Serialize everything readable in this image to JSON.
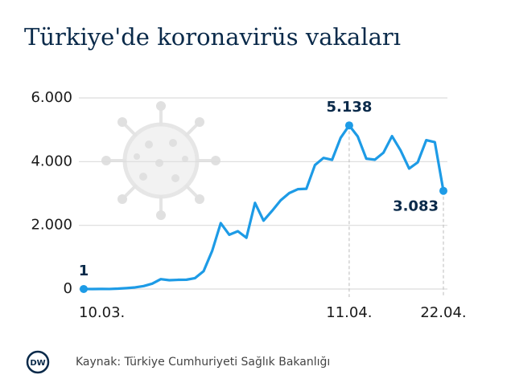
{
  "chart_data": {
    "type": "line",
    "title": "Türkiye'de koronavirüs vakaları",
    "source": "Kaynak: Türkiye Cumhuriyeti Sağlık Bakanlığı",
    "logo": "DW",
    "categories": [
      "10.03.",
      null,
      null,
      null,
      null,
      null,
      null,
      null,
      null,
      null,
      null,
      null,
      null,
      null,
      null,
      null,
      null,
      null,
      null,
      null,
      null,
      null,
      null,
      null,
      null,
      null,
      null,
      null,
      null,
      null,
      null,
      "11.04.",
      null,
      null,
      null,
      null,
      null,
      null,
      null,
      null,
      null,
      null,
      "22.04."
    ],
    "values": [
      1,
      0,
      4,
      1,
      12,
      29,
      51,
      93,
      168,
      311,
      277,
      289,
      293,
      343,
      561,
      1196,
      2069,
      1704,
      1815,
      1610,
      2704,
      2148,
      2456,
      2786,
      3013,
      3135,
      3148,
      3892,
      4117,
      4056,
      4747,
      5138,
      4789,
      4093,
      4062,
      4281,
      4801,
      4353,
      3783,
      3977,
      4674,
      4611,
      3083
    ],
    "value_labels": [
      "1",
      null,
      null,
      null,
      null,
      null,
      null,
      null,
      null,
      null,
      null,
      null,
      null,
      null,
      null,
      null,
      null,
      null,
      null,
      null,
      null,
      null,
      null,
      null,
      null,
      null,
      null,
      null,
      null,
      null,
      null,
      "5.138",
      null,
      null,
      null,
      null,
      null,
      null,
      null,
      null,
      null,
      null,
      "3.083"
    ],
    "color": "#1d9be6",
    "ylim": [
      0,
      6000
    ],
    "yticks": [
      0,
      {
        "value": 2000,
        "label": "2.000"
      },
      {
        "value": 4000,
        "label": "4.000"
      },
      {
        "value": 6000,
        "label": "6.000"
      }
    ],
    "grid": true
  }
}
